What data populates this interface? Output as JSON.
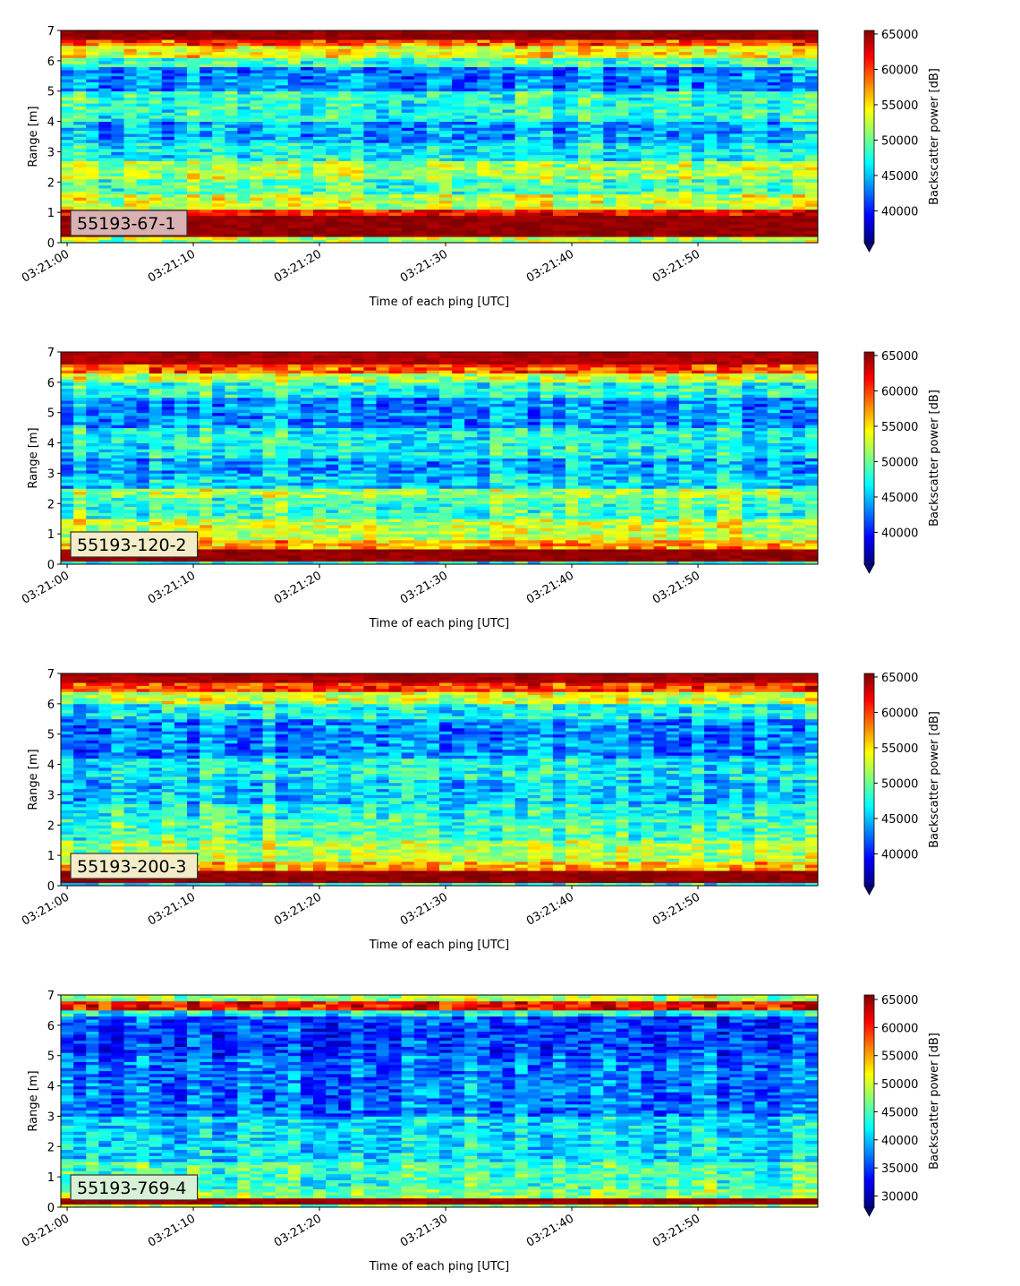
{
  "chart_data": [
    {
      "type": "heatmap",
      "label_box": "55193-67-1",
      "label_box_color": "#d9b1b3",
      "xlabel": "Time of each ping [UTC]",
      "ylabel": "Range [m]",
      "x_ticks": [
        "03:21:00",
        "03:21:10",
        "03:21:20",
        "03:21:30",
        "03:21:40",
        "03:21:50"
      ],
      "xlim_seconds": [
        -0.5,
        59.5
      ],
      "ylim": [
        0,
        7
      ],
      "y_ticks": [
        0,
        1,
        2,
        3,
        4,
        5,
        6,
        7
      ],
      "colorbar_label": "Backscatter power [dB]",
      "colorbar_ticks": [
        40000,
        45000,
        50000,
        55000,
        60000,
        65000
      ],
      "clim": [
        35500,
        65500
      ],
      "colormap": "jet",
      "colorbar_extend": "min",
      "bands": [
        {
          "range": [
            0.0,
            0.2
          ],
          "level": 0.55
        },
        {
          "range": [
            0.2,
            0.95
          ],
          "level": 0.98
        },
        {
          "range": [
            0.95,
            1.15
          ],
          "level": 0.88
        },
        {
          "range": [
            1.15,
            1.6
          ],
          "level": 0.58
        },
        {
          "range": [
            1.6,
            2.1
          ],
          "level": 0.45
        },
        {
          "range": [
            2.1,
            2.7
          ],
          "level": 0.55
        },
        {
          "range": [
            2.7,
            3.3
          ],
          "level": 0.38
        },
        {
          "range": [
            3.3,
            4.0
          ],
          "level": 0.3
        },
        {
          "range": [
            4.0,
            5.0
          ],
          "level": 0.42
        },
        {
          "range": [
            5.0,
            5.8
          ],
          "level": 0.26
        },
        {
          "range": [
            5.8,
            6.1
          ],
          "level": 0.45
        },
        {
          "range": [
            6.1,
            6.45
          ],
          "level": 0.62
        },
        {
          "range": [
            6.45,
            6.7
          ],
          "level": 0.8
        },
        {
          "range": [
            6.7,
            7.0
          ],
          "level": 0.98
        }
      ]
    },
    {
      "type": "heatmap",
      "label_box": "55193-120-2",
      "label_box_color": "#f2ecc9",
      "xlabel": "Time of each ping [UTC]",
      "ylabel": "Range [m]",
      "x_ticks": [
        "03:21:00",
        "03:21:10",
        "03:21:20",
        "03:21:30",
        "03:21:40",
        "03:21:50"
      ],
      "xlim_seconds": [
        -0.5,
        59.5
      ],
      "ylim": [
        0,
        7
      ],
      "y_ticks": [
        0,
        1,
        2,
        3,
        4,
        5,
        6,
        7
      ],
      "colorbar_label": "Backscatter power [dB]",
      "colorbar_ticks": [
        40000,
        45000,
        50000,
        55000,
        60000,
        65000
      ],
      "clim": [
        35500,
        65500
      ],
      "colormap": "jet",
      "colorbar_extend": "min",
      "bands": [
        {
          "range": [
            0.0,
            0.1
          ],
          "level": 0.4
        },
        {
          "range": [
            0.1,
            0.5
          ],
          "level": 0.98
        },
        {
          "range": [
            0.5,
            0.8
          ],
          "level": 0.72
        },
        {
          "range": [
            0.8,
            1.5
          ],
          "level": 0.58
        },
        {
          "range": [
            1.5,
            2.2
          ],
          "level": 0.45
        },
        {
          "range": [
            2.2,
            2.5
          ],
          "level": 0.55
        },
        {
          "range": [
            2.5,
            3.0
          ],
          "level": 0.35
        },
        {
          "range": [
            3.0,
            3.5
          ],
          "level": 0.3
        },
        {
          "range": [
            3.5,
            4.5
          ],
          "level": 0.4
        },
        {
          "range": [
            4.5,
            5.5
          ],
          "level": 0.28
        },
        {
          "range": [
            5.5,
            6.0
          ],
          "level": 0.42
        },
        {
          "range": [
            6.0,
            6.3
          ],
          "level": 0.58
        },
        {
          "range": [
            6.3,
            6.6
          ],
          "level": 0.8
        },
        {
          "range": [
            6.6,
            7.0
          ],
          "level": 0.95
        }
      ]
    },
    {
      "type": "heatmap",
      "label_box": "55193-200-3",
      "label_box_color": "#f2ecc9",
      "xlabel": "Time of each ping [UTC]",
      "ylabel": "Range [m]",
      "x_ticks": [
        "03:21:00",
        "03:21:10",
        "03:21:20",
        "03:21:30",
        "03:21:40",
        "03:21:50"
      ],
      "xlim_seconds": [
        -0.5,
        59.5
      ],
      "ylim": [
        0,
        7
      ],
      "y_ticks": [
        0,
        1,
        2,
        3,
        4,
        5,
        6,
        7
      ],
      "colorbar_label": "Backscatter power [dB]",
      "colorbar_ticks": [
        40000,
        45000,
        50000,
        55000,
        60000,
        65000
      ],
      "clim": [
        35500,
        65500
      ],
      "colormap": "jet",
      "colorbar_extend": "min",
      "bands": [
        {
          "range": [
            0.0,
            0.1
          ],
          "level": 0.4
        },
        {
          "range": [
            0.1,
            0.45
          ],
          "level": 0.98
        },
        {
          "range": [
            0.45,
            0.8
          ],
          "level": 0.7
        },
        {
          "range": [
            0.8,
            1.5
          ],
          "level": 0.55
        },
        {
          "range": [
            1.5,
            2.2
          ],
          "level": 0.45
        },
        {
          "range": [
            2.2,
            2.7
          ],
          "level": 0.4
        },
        {
          "range": [
            2.7,
            3.5
          ],
          "level": 0.33
        },
        {
          "range": [
            3.5,
            4.2
          ],
          "level": 0.38
        },
        {
          "range": [
            4.2,
            5.5
          ],
          "level": 0.26
        },
        {
          "range": [
            5.5,
            6.0
          ],
          "level": 0.38
        },
        {
          "range": [
            6.0,
            6.4
          ],
          "level": 0.58
        },
        {
          "range": [
            6.4,
            6.7
          ],
          "level": 0.82
        },
        {
          "range": [
            6.7,
            7.0
          ],
          "level": 0.96
        }
      ]
    },
    {
      "type": "heatmap",
      "label_box": "55193-769-4",
      "label_box_color": "#d8f0d5",
      "xlabel": "Time of each ping [UTC]",
      "ylabel": "Range [m]",
      "x_ticks": [
        "03:21:00",
        "03:21:10",
        "03:21:20",
        "03:21:30",
        "03:21:40",
        "03:21:50"
      ],
      "xlim_seconds": [
        -0.5,
        59.5
      ],
      "ylim": [
        0,
        7
      ],
      "y_ticks": [
        0,
        1,
        2,
        3,
        4,
        5,
        6,
        7
      ],
      "colorbar_label": "Backscatter power [dB]",
      "colorbar_ticks": [
        30000,
        35000,
        40000,
        45000,
        50000,
        55000,
        60000,
        65000
      ],
      "clim": [
        28000,
        65800
      ],
      "colormap": "jet",
      "colorbar_extend": "min",
      "bands": [
        {
          "range": [
            0.0,
            0.15
          ],
          "level": 0.55
        },
        {
          "range": [
            0.15,
            0.35
          ],
          "level": 0.98
        },
        {
          "range": [
            0.35,
            0.6
          ],
          "level": 0.52
        },
        {
          "range": [
            0.6,
            1.5
          ],
          "level": 0.45
        },
        {
          "range": [
            1.5,
            3.0
          ],
          "level": 0.36
        },
        {
          "range": [
            3.0,
            5.0
          ],
          "level": 0.25
        },
        {
          "range": [
            5.0,
            6.3
          ],
          "level": 0.2
        },
        {
          "range": [
            6.3,
            6.55
          ],
          "level": 0.4
        },
        {
          "range": [
            6.55,
            6.8
          ],
          "level": 0.88
        },
        {
          "range": [
            6.8,
            7.0
          ],
          "level": 0.55
        }
      ]
    }
  ]
}
